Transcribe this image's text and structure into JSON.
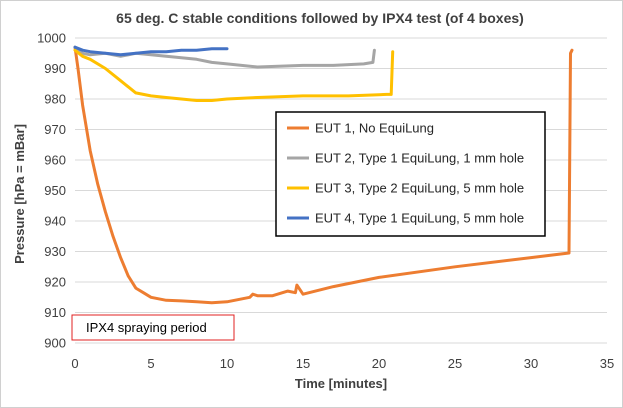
{
  "chart_data": {
    "type": "line",
    "title": "65 deg. C stable conditions followed by IPX4 test (of 4 boxes)",
    "xlabel": "Time [minutes]",
    "ylabel": "Pressure [hPa = mBar]",
    "xlim": [
      0,
      35
    ],
    "ylim": [
      900,
      1000
    ],
    "xticks": [
      0,
      5,
      10,
      15,
      20,
      25,
      30,
      35
    ],
    "yticks": [
      900,
      910,
      920,
      930,
      940,
      950,
      960,
      970,
      980,
      990,
      1000
    ],
    "grid": "horizontal",
    "legend_position": "right-center",
    "annotation": "IPX4 spraying period",
    "series": [
      {
        "name": "EUT 1, No EquiLung",
        "color": "#ED7D31",
        "x": [
          0,
          0.2,
          0.5,
          1,
          1.5,
          2,
          2.5,
          3,
          3.5,
          4,
          4.5,
          5,
          6,
          7,
          8,
          9,
          10,
          11,
          11.5,
          11.7,
          12,
          13,
          14,
          14.5,
          14.6,
          15,
          17,
          20,
          25,
          30,
          32.5,
          32.6,
          32.7
        ],
        "y": [
          997,
          990,
          978,
          963,
          952,
          943,
          935,
          928,
          922,
          918,
          916.5,
          915,
          914,
          913.8,
          913.5,
          913.2,
          913.5,
          914.5,
          915,
          916,
          915.5,
          915.5,
          917,
          916.5,
          919,
          916,
          918.5,
          921.5,
          925,
          928,
          929.5,
          995,
          996
        ]
      },
      {
        "name": "EUT 2, Type 1 EquiLung, 1 mm hole",
        "color": "#A5A5A5",
        "x": [
          0,
          0.5,
          1,
          2,
          3,
          4,
          5,
          6,
          7,
          8,
          9,
          10,
          12,
          15,
          17,
          19,
          19.6,
          19.7
        ],
        "y": [
          997,
          995,
          994.5,
          995,
          994,
          995,
          994.5,
          994,
          993.5,
          993,
          992,
          991.5,
          990.5,
          991,
          991,
          991.5,
          992,
          996
        ]
      },
      {
        "name": "EUT 3, Type 2 EquiLung, 5 mm hole",
        "color": "#FFC000",
        "x": [
          0,
          0.5,
          1,
          2,
          3,
          4,
          5,
          6,
          7,
          8,
          9,
          10,
          12,
          15,
          18,
          20.5,
          20.8,
          20.9
        ],
        "y": [
          996,
          994,
          993,
          990,
          986,
          982,
          981,
          980.5,
          980,
          979.5,
          979.5,
          980,
          980.5,
          981,
          981,
          981.5,
          981.5,
          995.5
        ]
      },
      {
        "name": "EUT 4, Type 1 EquiLung, 5 mm hole",
        "color": "#4472C4",
        "x": [
          0,
          0.5,
          1,
          2,
          3,
          4,
          5,
          6,
          7,
          8,
          9,
          10
        ],
        "y": [
          997,
          996,
          995.5,
          995,
          994.5,
          995,
          995.5,
          995.5,
          996,
          996,
          996.5,
          996.5
        ]
      }
    ]
  }
}
